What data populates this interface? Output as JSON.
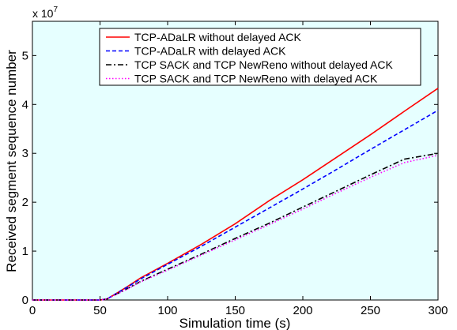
{
  "chart_data": {
    "type": "line",
    "title": "",
    "xlabel": "Simulation time (s)",
    "ylabel": "Received segment sequence number",
    "xlim": [
      0,
      300
    ],
    "ylim": [
      0,
      5.7
    ],
    "y_multiplier": {
      "base": "x 10",
      "exponent": "7"
    },
    "xticks": [
      0,
      50,
      100,
      150,
      200,
      250,
      300
    ],
    "xtick_labels": [
      "0",
      "50",
      "100",
      "150",
      "200",
      "250",
      "300"
    ],
    "yticks": [
      0,
      1,
      2,
      3,
      4,
      5
    ],
    "ytick_labels": [
      "0",
      "1",
      "2",
      "3",
      "4",
      "5"
    ],
    "grid": false,
    "background_color": "#e6ffff",
    "legend_position": "top-center",
    "series": [
      {
        "name": "TCP-ADaLR without delayed ACK",
        "color": "#ff0000",
        "dash": "solid",
        "x": [
          0,
          50,
          55,
          60,
          70,
          80,
          100,
          125,
          150,
          175,
          200,
          225,
          250,
          275,
          300
        ],
        "y": [
          0,
          0,
          0.02,
          0.1,
          0.27,
          0.45,
          0.75,
          1.14,
          1.56,
          2.03,
          2.46,
          2.92,
          3.38,
          3.86,
          4.33
        ]
      },
      {
        "name": "TCP-ADaLR with delayed ACK",
        "color": "#0000ff",
        "dash": "dashed",
        "x": [
          0,
          50,
          55,
          60,
          70,
          80,
          100,
          125,
          150,
          175,
          200,
          225,
          250,
          275,
          300
        ],
        "y": [
          0,
          0,
          0.02,
          0.1,
          0.26,
          0.43,
          0.73,
          1.1,
          1.49,
          1.88,
          2.27,
          2.67,
          3.08,
          3.48,
          3.88
        ]
      },
      {
        "name": "TCP SACK and TCP NewReno without delayed ACK",
        "color": "#000000",
        "dash": "dashdot",
        "x": [
          0,
          50,
          55,
          60,
          70,
          80,
          100,
          125,
          150,
          175,
          200,
          225,
          250,
          275,
          300
        ],
        "y": [
          0,
          0,
          0.02,
          0.09,
          0.23,
          0.38,
          0.63,
          0.94,
          1.26,
          1.57,
          1.9,
          2.23,
          2.56,
          2.88,
          3.0
        ]
      },
      {
        "name": "TCP SACK and TCP NewReno with delayed ACK",
        "color": "#ff00ff",
        "dash": "dotted",
        "x": [
          0,
          50,
          55,
          60,
          70,
          80,
          100,
          125,
          150,
          175,
          200,
          225,
          250,
          275,
          300
        ],
        "y": [
          0,
          0,
          0.02,
          0.09,
          0.22,
          0.37,
          0.61,
          0.92,
          1.23,
          1.54,
          1.86,
          2.19,
          2.51,
          2.81,
          2.96
        ]
      }
    ]
  }
}
